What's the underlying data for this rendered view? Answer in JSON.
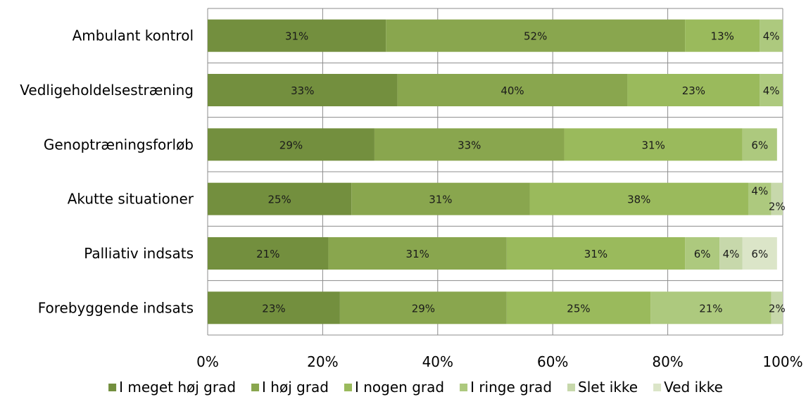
{
  "chart_data": {
    "type": "bar",
    "orientation": "horizontal",
    "stacked": true,
    "categories": [
      "Ambulant kontrol",
      "Vedligeholdelsestræning",
      "Genoptræningsforløb",
      "Akutte situationer",
      "Palliativ indsats",
      "Forebyggende indsats"
    ],
    "series": [
      {
        "name": "I meget høj grad",
        "color": "#738f3e",
        "values": [
          31,
          33,
          29,
          25,
          21,
          23
        ],
        "labels": [
          "31%",
          "33%",
          "29%",
          "25%",
          "21%",
          "23%"
        ]
      },
      {
        "name": "I høj grad",
        "color": "#89a64e",
        "values": [
          52,
          40,
          33,
          31,
          31,
          29
        ],
        "labels": [
          "52%",
          "40%",
          "33%",
          "31%",
          "31%",
          "29%"
        ]
      },
      {
        "name": "I nogen grad",
        "color": "#9aba5c",
        "values": [
          13,
          23,
          31,
          38,
          31,
          25
        ],
        "labels": [
          "13%",
          "23%",
          "31%",
          "38%",
          "31%",
          "25%"
        ]
      },
      {
        "name": "I ringe grad",
        "color": "#adc97e",
        "values": [
          4,
          4,
          6,
          4,
          6,
          21
        ],
        "labels": [
          "4%",
          "4%",
          "6%",
          "4%",
          "6%",
          "21%"
        ]
      },
      {
        "name": "Slet ikke",
        "color": "#c7d8ab",
        "values": [
          0,
          0,
          0,
          2,
          4,
          2
        ],
        "labels": [
          "",
          "",
          "",
          "2%",
          "4%",
          "2%"
        ]
      },
      {
        "name": "Ved ikke",
        "color": "#dbe5c8",
        "values": [
          0,
          0,
          0,
          0,
          6,
          0
        ],
        "labels": [
          "",
          "",
          "",
          "",
          "6%",
          ""
        ]
      }
    ],
    "xaxis": {
      "min": 0,
      "max": 100,
      "ticks": [
        0,
        20,
        40,
        60,
        80,
        100
      ],
      "tick_labels": [
        "0%",
        "20%",
        "40%",
        "60%",
        "80%",
        "100%"
      ]
    },
    "grid": true,
    "legend_position": "bottom"
  }
}
